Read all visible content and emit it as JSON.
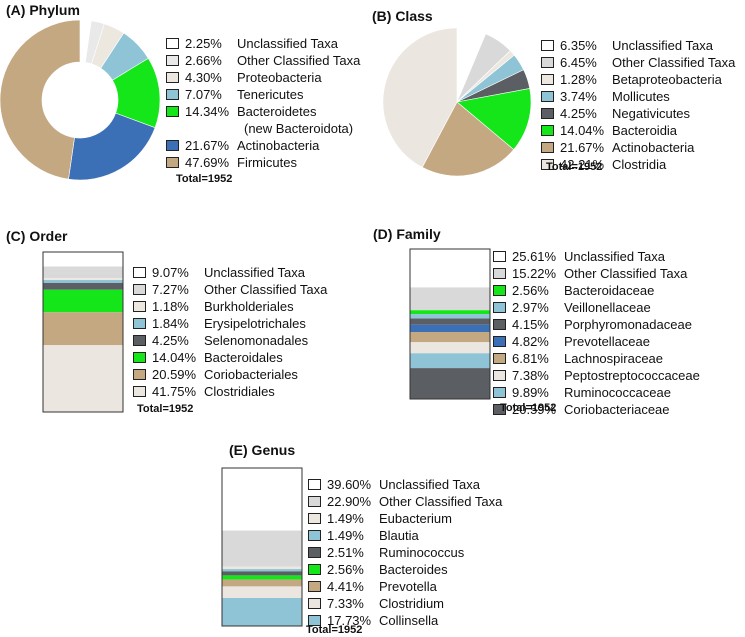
{
  "chart_data": [
    {
      "id": "A",
      "type": "pie",
      "variant": "donut",
      "title": "(A) Phylum",
      "total": "Total=1952",
      "slices": [
        {
          "pct": "2.25%",
          "value": 2.25,
          "label": "Unclassified Taxa",
          "color": "#ffffff"
        },
        {
          "pct": "2.66%",
          "value": 2.66,
          "label": "Other Classified Taxa",
          "color": "#e9e9e9"
        },
        {
          "pct": "4.30%",
          "value": 4.3,
          "label": "Proteobacteria",
          "color": "#ece8e0"
        },
        {
          "pct": "7.07%",
          "value": 7.07,
          "label": "Tenericutes",
          "color": "#8fc3d6"
        },
        {
          "pct": "14.34%",
          "value": 14.34,
          "label": "Bacteroidetes",
          "label2": "(new Bacteroidota)",
          "color": "#14e619"
        },
        {
          "pct": "21.67%",
          "value": 21.67,
          "label": "Actinobacteria",
          "color": "#3b6fb6"
        },
        {
          "pct": "47.69%",
          "value": 47.69,
          "label": "Firmicutes",
          "color": "#c4a882"
        }
      ]
    },
    {
      "id": "B",
      "type": "pie",
      "title": "(B) Class",
      "total": "Total=1952",
      "slices": [
        {
          "pct": "6.35%",
          "value": 6.35,
          "label": "Unclassified Taxa",
          "color": "#ffffff"
        },
        {
          "pct": "6.45%",
          "value": 6.45,
          "label": "Other Classified Taxa",
          "color": "#d9d9d9"
        },
        {
          "pct": "1.28%",
          "value": 1.28,
          "label": "Betaproteobacteria",
          "color": "#ece8e0"
        },
        {
          "pct": "3.74%",
          "value": 3.74,
          "label": "Mollicutes",
          "color": "#8fc3d6"
        },
        {
          "pct": "4.25%",
          "value": 4.25,
          "label": "Negativicutes",
          "color": "#5b5f63"
        },
        {
          "pct": "14.04%",
          "value": 14.04,
          "label": "Bacteroidia",
          "color": "#14e619"
        },
        {
          "pct": "21.67%",
          "value": 21.67,
          "label": "Actinobacteria",
          "color": "#c4a882"
        },
        {
          "pct": "42.21%",
          "value": 42.21,
          "label": "Clostridia",
          "color": "#ebe6e0"
        }
      ]
    },
    {
      "id": "C",
      "type": "bar",
      "variant": "stacked-100",
      "title": "(C) Order",
      "total": "Total=1952",
      "slices": [
        {
          "pct": "9.07%",
          "value": 9.07,
          "label": "Unclassified Taxa",
          "color": "#ffffff"
        },
        {
          "pct": "7.27%",
          "value": 7.27,
          "label": "Other Classified Taxa",
          "color": "#d9d9d9"
        },
        {
          "pct": "1.18%",
          "value": 1.18,
          "label": "Burkholderiales",
          "color": "#ece8e0"
        },
        {
          "pct": "1.84%",
          "value": 1.84,
          "label": "Erysipelotrichales",
          "color": "#8fc3d6"
        },
        {
          "pct": "4.25%",
          "value": 4.25,
          "label": "Selenomonadales",
          "color": "#5b5f63"
        },
        {
          "pct": "14.04%",
          "value": 14.04,
          "label": "Bacteroidales",
          "color": "#14e619"
        },
        {
          "pct": "20.59%",
          "value": 20.59,
          "label": "Coriobacteriales",
          "color": "#c4a882"
        },
        {
          "pct": "41.75%",
          "value": 41.75,
          "label": "Clostridiales",
          "color": "#ebe6e0"
        }
      ]
    },
    {
      "id": "D",
      "type": "bar",
      "variant": "stacked-100",
      "title": "(D) Family",
      "total": "Total=1952",
      "slices": [
        {
          "pct": "25.61%",
          "value": 25.61,
          "label": "Unclassified Taxa",
          "color": "#ffffff"
        },
        {
          "pct": "15.22%",
          "value": 15.22,
          "label": "Other Classified Taxa",
          "color": "#d9d9d9"
        },
        {
          "pct": "2.56%",
          "value": 2.56,
          "label": "Bacteroidaceae",
          "color": "#14e619"
        },
        {
          "pct": "2.97%",
          "value": 2.97,
          "label": "Veillonellaceae",
          "color": "#8fc3d6"
        },
        {
          "pct": "4.15%",
          "value": 4.15,
          "label": "Porphyromonadaceae",
          "color": "#5b5f63"
        },
        {
          "pct": "4.82%",
          "value": 4.82,
          "label": "Prevotellaceae",
          "color": "#3b6fb6"
        },
        {
          "pct": "6.81%",
          "value": 6.81,
          "label": "Lachnospiraceae",
          "color": "#c4a882"
        },
        {
          "pct": "7.38%",
          "value": 7.38,
          "label": "Peptostreptococcaceae",
          "color": "#ebe6e0"
        },
        {
          "pct": "9.89%",
          "value": 9.89,
          "label": "Ruminococcaceae",
          "color": "#8fc3d6"
        },
        {
          "pct": "20.59%",
          "value": 20.59,
          "label": "Coriobacteriaceae",
          "color": "#5b5f63"
        }
      ]
    },
    {
      "id": "E",
      "type": "bar",
      "variant": "stacked-100",
      "title": "(E) Genus",
      "total": "Total=1952",
      "slices": [
        {
          "pct": "39.60%",
          "value": 39.6,
          "label": "Unclassified Taxa",
          "color": "#ffffff"
        },
        {
          "pct": "22.90%",
          "value": 22.9,
          "label": "Other Classified Taxa",
          "color": "#d9d9d9"
        },
        {
          "pct": "1.49%",
          "value": 1.49,
          "label": "Eubacterium",
          "color": "#ece8e0"
        },
        {
          "pct": "1.49%",
          "value": 1.49,
          "label": "Blautia",
          "color": "#8fc3d6"
        },
        {
          "pct": "2.51%",
          "value": 2.51,
          "label": "Ruminococcus",
          "color": "#5b5f63"
        },
        {
          "pct": "2.56%",
          "value": 2.56,
          "label": "Bacteroides",
          "color": "#14e619"
        },
        {
          "pct": "4.41%",
          "value": 4.41,
          "label": "Prevotella",
          "color": "#c4a882"
        },
        {
          "pct": "7.33%",
          "value": 7.33,
          "label": "Clostridium",
          "color": "#ebe6e0"
        },
        {
          "pct": "17.73%",
          "value": 17.73,
          "label": "Collinsella",
          "color": "#8fc3d6"
        }
      ]
    }
  ]
}
